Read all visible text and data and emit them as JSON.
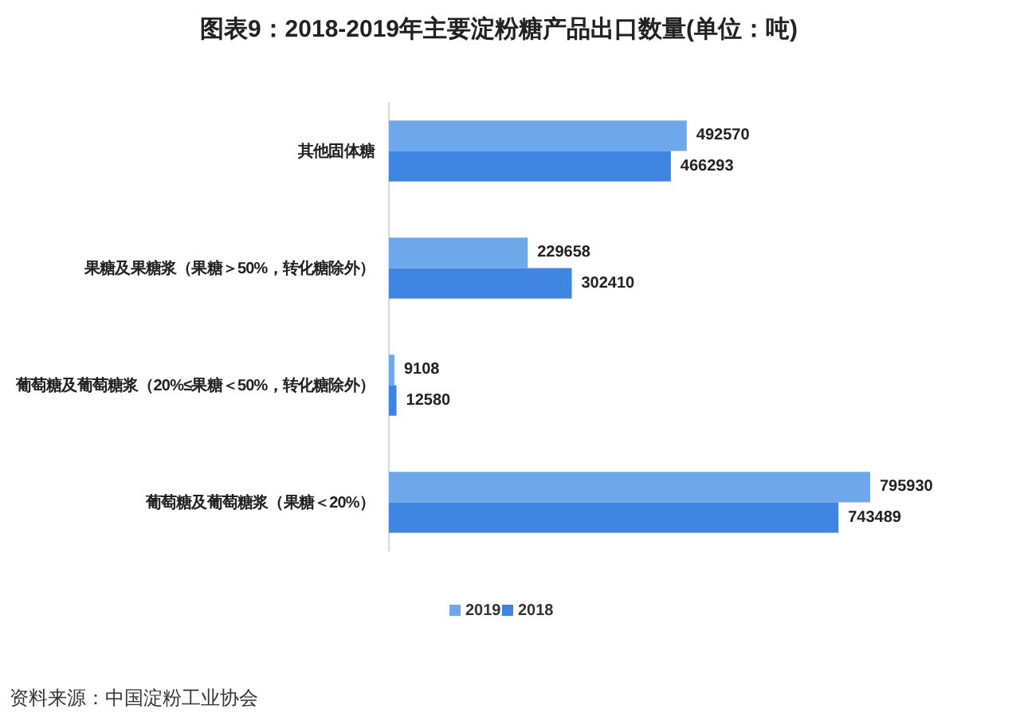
{
  "chart_data": {
    "type": "bar",
    "orientation": "horizontal",
    "title": "图表9：2018-2019年主要淀粉糖产品出口数量(单位：吨)",
    "categories": [
      "其他固体糖",
      "果糖及果糖浆（果糖＞50%，转化糖除外）",
      "葡萄糖及葡萄糖浆（20%≤果糖＜50%，转化糖除外）",
      "葡萄糖及葡萄糖浆（果糖＜20%）"
    ],
    "series": [
      {
        "name": "2019",
        "color": "#6fa8ea",
        "values": [
          492570,
          229658,
          9108,
          795930
        ]
      },
      {
        "name": "2018",
        "color": "#3d85e0",
        "values": [
          466293,
          302410,
          12580,
          743489
        ]
      }
    ],
    "data_labels": true,
    "legend": "bottom",
    "annotations": [
      "资料来源：中国淀粉工业协会"
    ]
  }
}
